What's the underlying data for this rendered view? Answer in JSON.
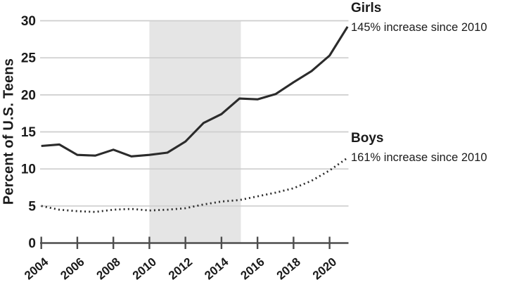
{
  "chart_data": {
    "type": "line",
    "title": "",
    "xlabel": "",
    "ylabel": "Percent of U.S. Teens",
    "x": [
      2004,
      2005,
      2006,
      2007,
      2008,
      2009,
      2010,
      2011,
      2012,
      2013,
      2014,
      2015,
      2016,
      2017,
      2018,
      2019,
      2020,
      2021
    ],
    "series": [
      {
        "name": "Girls",
        "annotation": "145% increase since 2010",
        "line_style": "solid",
        "values": [
          13.1,
          13.3,
          11.9,
          11.8,
          12.6,
          11.7,
          11.9,
          12.2,
          13.7,
          16.2,
          17.4,
          19.5,
          19.4,
          20.1,
          21.7,
          23.2,
          25.3,
          29.2
        ]
      },
      {
        "name": "Boys",
        "annotation": "161% increase since 2010",
        "line_style": "dotted",
        "values": [
          5.0,
          4.5,
          4.3,
          4.2,
          4.5,
          4.6,
          4.4,
          4.5,
          4.7,
          5.2,
          5.6,
          5.8,
          6.3,
          6.8,
          7.4,
          8.4,
          9.8,
          11.5
        ]
      }
    ],
    "x_ticks": [
      2004,
      2006,
      2008,
      2010,
      2012,
      2014,
      2016,
      2018,
      2020
    ],
    "y_ticks": [
      0,
      5,
      10,
      15,
      20,
      25,
      30
    ],
    "xlim": [
      2004,
      2021
    ],
    "ylim": [
      0,
      30
    ],
    "grid": "horizontal",
    "legend_position": "right",
    "shaded_region": {
      "from": 2010,
      "to": 2015
    },
    "colors": {
      "line": "#2b2b2b",
      "grid": "#cecece",
      "axis": "#4d4d4d",
      "shade": "#e5e5e5",
      "text": "#1a1a1a",
      "background": "#ffffff"
    }
  }
}
